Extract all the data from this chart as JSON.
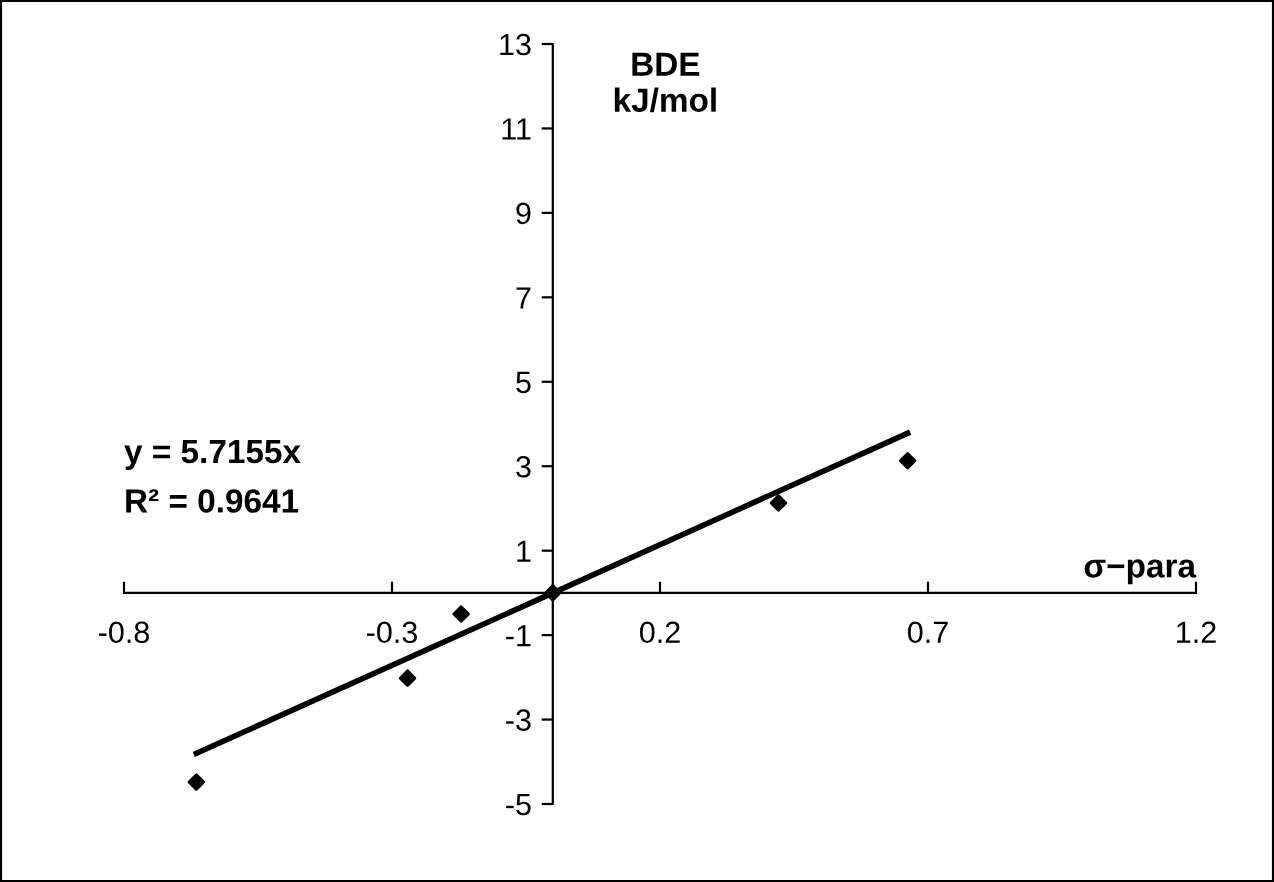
{
  "chart_data": {
    "type": "scatter",
    "xlabel": "σ−para",
    "ylabel": "BDE\nkJ/mol",
    "annotations": [
      "y = 5.7155x",
      "R² = 0.9641"
    ],
    "series": [
      {
        "color": "#000000",
        "marker": "diamond",
        "x": [
          -0.665,
          -0.271,
          -0.171,
          0,
          0.421,
          0.662
        ],
        "values": [
          -4.48,
          -2.02,
          -0.5,
          0,
          2.13,
          3.13
        ]
      },
      {
        "type": "line",
        "color": "#000000",
        "marker": "none",
        "x": [
          -0.665,
          0.662
        ],
        "values": [
          -3.8,
          3.78
        ]
      }
    ],
    "xlim": [
      -0.8,
      1.2
    ],
    "xticks": [
      -0.8,
      -0.3,
      0.2,
      0.7,
      1.2
    ],
    "ylim": [
      -5,
      13
    ],
    "yticks": [
      -5,
      -3,
      -1,
      1,
      3,
      5,
      7,
      9,
      11,
      13
    ],
    "grid": false,
    "legend": false
  }
}
